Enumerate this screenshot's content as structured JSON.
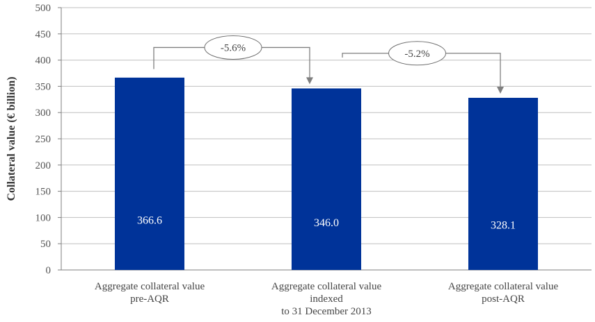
{
  "chart_data": {
    "type": "bar",
    "categories": [
      [
        "Aggregate collateral value",
        "pre-AQR"
      ],
      [
        "Aggregate collateral value",
        "indexed",
        "to 31 December 2013"
      ],
      [
        "Aggregate collateral value",
        "post-AQR"
      ]
    ],
    "values": [
      366.6,
      346.0,
      328.1
    ],
    "value_labels": [
      "366.6",
      "346.0",
      "328.1"
    ],
    "ylabel": "Collateral value (€ billion)",
    "ylim": [
      0,
      500
    ],
    "yticks": [
      0,
      50,
      100,
      150,
      200,
      250,
      300,
      350,
      400,
      450,
      500
    ],
    "grid": true,
    "annotations": [
      {
        "from": 0,
        "to": 1,
        "label": "-5.6%"
      },
      {
        "from": 1,
        "to": 2,
        "label": "-5.2%"
      }
    ],
    "colors": {
      "bar": "#003399",
      "grid": "#bfbfbf",
      "axis": "#7f7f7f",
      "arrow": "#7f7f7f"
    }
  }
}
